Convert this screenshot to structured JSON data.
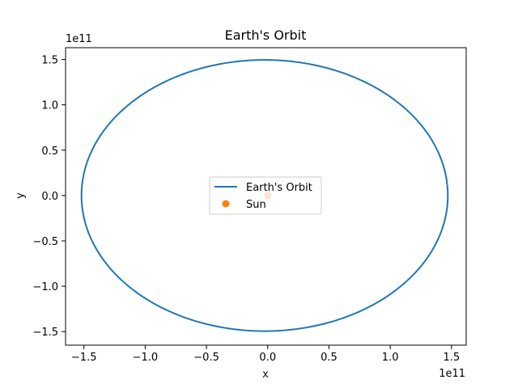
{
  "chart_data": {
    "type": "line",
    "title": "Earth's Orbit",
    "xlabel": "x",
    "ylabel": "y",
    "x_offset_label": "1e11",
    "y_offset_label": "1e11",
    "xlim": [
      -1.65,
      1.62
    ],
    "ylim": [
      -1.65,
      1.63
    ],
    "xticks": [
      -1.5,
      -1.0,
      -0.5,
      0.0,
      0.5,
      1.0,
      1.5
    ],
    "xtick_labels": [
      "−1.5",
      "−1.0",
      "−0.5",
      "0.0",
      "0.5",
      "1.0",
      "1.5"
    ],
    "yticks": [
      -1.5,
      -1.0,
      -0.5,
      0.0,
      0.5,
      1.0,
      1.5
    ],
    "ytick_labels": [
      "−1.5",
      "−1.0",
      "−0.5",
      "0.0",
      "0.5",
      "1.0",
      "1.5"
    ],
    "grid": false,
    "legend_placement": "center",
    "series": [
      {
        "name": "Earth's Orbit",
        "kind": "line",
        "color": "#1f77b4",
        "shape": "ellipse",
        "center": [
          -0.025,
          0.0
        ],
        "semi_axis_x": 1.495,
        "semi_axis_y": 1.495
      },
      {
        "name": "Sun",
        "kind": "scatter",
        "color": "#ff7f0e",
        "points": [
          [
            0.0,
            0.0
          ]
        ]
      }
    ]
  }
}
